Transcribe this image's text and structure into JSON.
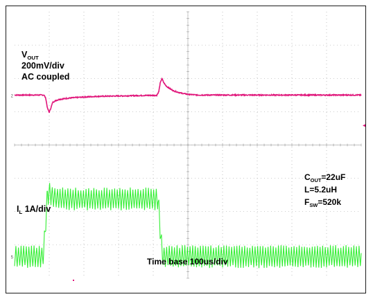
{
  "chart_data": {
    "type": "line",
    "time_base_label": "Time base 100us/div",
    "traces": [
      {
        "name": "VOUT",
        "color": "#e0157a",
        "label_lines": [
          {
            "main": "V",
            "sub": "OUT"
          },
          {
            "main": "200mV/div"
          },
          {
            "main": "AC coupled"
          }
        ],
        "channel_marker": "2",
        "x": [
          0.0,
          0.85,
          0.9,
          0.95,
          1.0,
          1.05,
          1.1,
          1.2,
          1.3,
          1.5,
          1.7,
          2.0,
          2.4,
          2.9,
          3.4,
          3.9,
          4.1,
          4.16,
          4.2,
          4.25,
          4.3,
          4.35,
          4.4,
          4.5,
          4.6,
          4.8,
          5.0,
          5.3,
          5.6,
          6.0,
          6.5,
          7.2,
          8.0,
          8.8,
          9.5,
          10.0
        ],
        "y": [
          0.0,
          0.0,
          -0.1,
          -0.4,
          -0.52,
          -0.38,
          -0.22,
          -0.16,
          -0.13,
          -0.1,
          -0.08,
          -0.06,
          -0.04,
          -0.03,
          -0.02,
          -0.01,
          -0.01,
          0.1,
          0.35,
          0.5,
          0.38,
          0.3,
          0.25,
          0.18,
          0.12,
          0.06,
          0.02,
          0.0,
          0.0,
          0.0,
          0.0,
          0.0,
          0.0,
          0.0,
          0.0,
          0.0
        ]
      },
      {
        "name": "IL",
        "color": "#33ee33",
        "label_lines": [
          {
            "main": "I",
            "sub": "L",
            "tail": " 1A/div"
          }
        ],
        "channel_marker": "5",
        "x": [
          0.0,
          0.82,
          0.87,
          0.91,
          0.95,
          1.0,
          1.1,
          1.2,
          1.4,
          2.0,
          3.0,
          4.0,
          4.14,
          4.18,
          4.22,
          4.26,
          4.3,
          4.4,
          6.0,
          8.0,
          10.0
        ],
        "mid": [
          0.65,
          0.65,
          1.2,
          1.9,
          2.5,
          2.6,
          2.45,
          2.4,
          2.38,
          2.38,
          2.38,
          2.38,
          2.38,
          1.8,
          1.2,
          0.75,
          0.65,
          0.65,
          0.65,
          0.65,
          0.65
        ],
        "ripple": 0.6,
        "ripple_period": 0.075
      }
    ],
    "annotations": [
      {
        "main": "C",
        "sub": "OUT",
        "tail": "=22uF"
      },
      {
        "main": "L=5.2uH"
      },
      {
        "main": "F",
        "sub": "SW",
        "tail": "=520k"
      }
    ],
    "trigger_marker": "◂",
    "grid": true,
    "divisions": {
      "x": 10,
      "y": 8
    }
  }
}
